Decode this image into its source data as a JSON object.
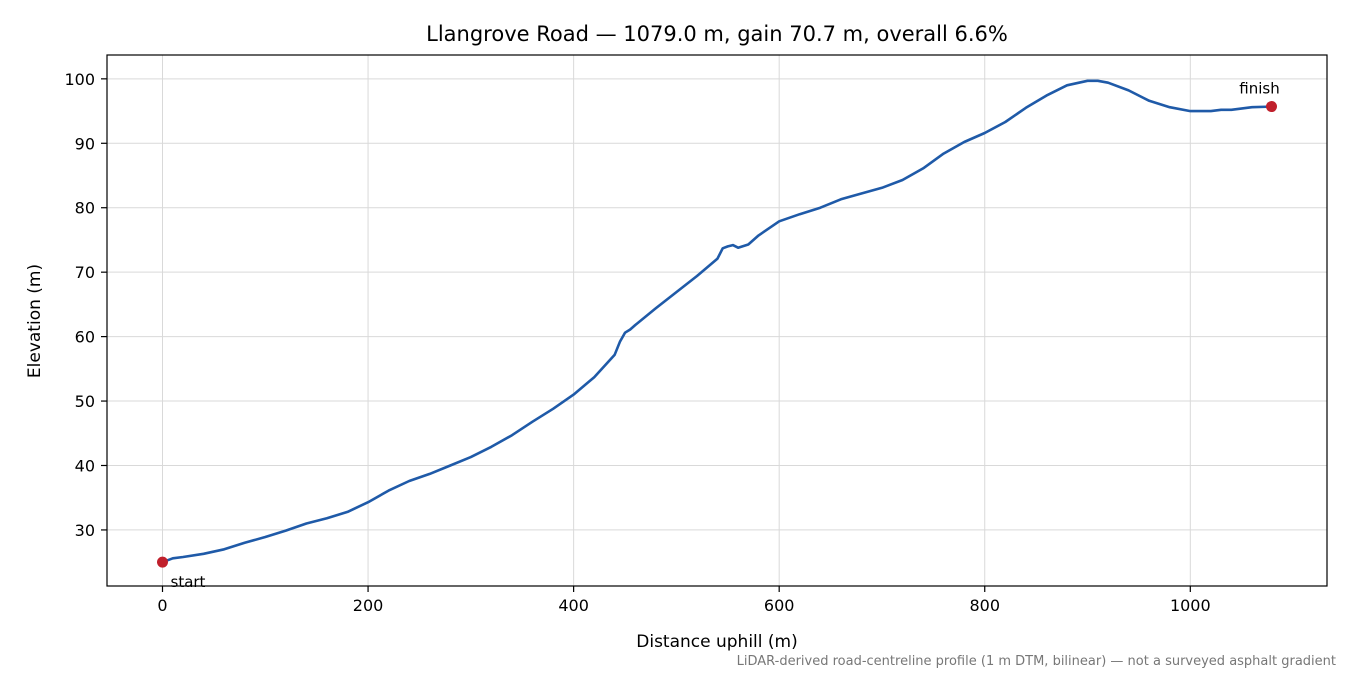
{
  "chart_data": {
    "type": "line",
    "title": "Llangrove Road — 1079.0 m, gain 70.7 m, overall 6.6%",
    "xlabel": "Distance uphill (m)",
    "ylabel": "Elevation (m)",
    "xlim": [
      -54,
      1133
    ],
    "ylim": [
      21.3,
      103.7
    ],
    "xticks": [
      0,
      200,
      400,
      600,
      800,
      1000
    ],
    "yticks": [
      30,
      40,
      50,
      60,
      70,
      80,
      90,
      100
    ],
    "grid": true,
    "series": [
      {
        "color": "#1f5aa8",
        "x": [
          0,
          10,
          20,
          40,
          60,
          80,
          100,
          120,
          140,
          160,
          180,
          200,
          220,
          240,
          260,
          280,
          300,
          320,
          340,
          360,
          380,
          400,
          420,
          440,
          445,
          450,
          455,
          460,
          480,
          500,
          520,
          540,
          545,
          550,
          555,
          560,
          570,
          580,
          600,
          620,
          640,
          660,
          680,
          700,
          720,
          740,
          760,
          780,
          800,
          820,
          840,
          860,
          880,
          900,
          910,
          920,
          940,
          960,
          980,
          1000,
          1020,
          1030,
          1040,
          1060,
          1079
        ],
        "y": [
          25.0,
          25.6,
          25.8,
          26.3,
          27.0,
          28.0,
          28.9,
          29.9,
          31.0,
          31.8,
          32.8,
          34.3,
          36.1,
          37.6,
          38.7,
          40.0,
          41.3,
          42.9,
          44.7,
          46.8,
          48.8,
          51.0,
          53.7,
          57.2,
          59.2,
          60.6,
          61.1,
          61.8,
          64.4,
          66.9,
          69.4,
          72.1,
          73.7,
          74.0,
          74.2,
          73.8,
          74.3,
          75.7,
          77.9,
          79.0,
          80.0,
          81.3,
          82.2,
          83.1,
          84.3,
          86.1,
          88.4,
          90.2,
          91.6,
          93.3,
          95.5,
          97.4,
          99.0,
          99.7,
          99.7,
          99.4,
          98.2,
          96.6,
          95.6,
          95.0,
          95.0,
          95.2,
          95.2,
          95.6,
          95.7
        ]
      }
    ],
    "markers": [
      {
        "x": 0,
        "y": 25.0,
        "color": "#c0202c",
        "label": "start"
      },
      {
        "x": 1079,
        "y": 95.7,
        "color": "#c0202c",
        "label": "finish"
      }
    ],
    "footnote": "LiDAR-derived road-centreline profile (1 m DTM, bilinear) — not a surveyed asphalt gradient"
  }
}
